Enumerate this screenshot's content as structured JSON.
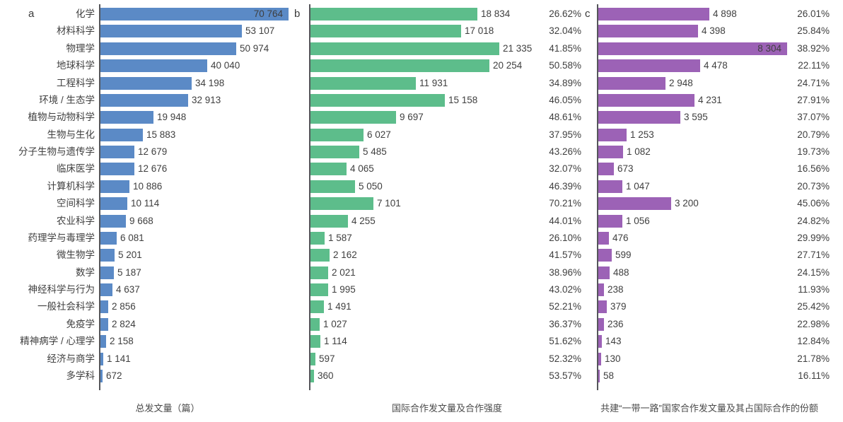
{
  "figure": {
    "text_color": "#3f3f3f",
    "axis_color": "#55565a",
    "background": "#ffffff",
    "panels": [
      {
        "letter": "a",
        "caption": "总发文量（篇）",
        "color": "#5b8ac6"
      },
      {
        "letter": "b",
        "caption": "国际合作发文量及合作强度",
        "color": "#5dbd8b"
      },
      {
        "letter": "c",
        "caption": "共建“一带一路”国家合作发文量及其占国际合作的份额",
        "color": "#9c62b6"
      }
    ]
  },
  "chart_data": {
    "type": "bar",
    "orientation": "horizontal",
    "value_format": "space-thousands",
    "categories": [
      "化学",
      "材料科学",
      "物理学",
      "地球科学",
      "工程科学",
      "环境 / 生态学",
      "植物与动物科学",
      "生物与生化",
      "分子生物与遗传学",
      "临床医学",
      "计算机科学",
      "空间科学",
      "农业科学",
      "药理学与毒理学",
      "微生物学",
      "数学",
      "神经科学与行为",
      "一般社会科学",
      "免疫学",
      "精神病学 / 心理学",
      "经济与商学",
      "多学科"
    ],
    "series": [
      {
        "panel": "a",
        "name": "总发文量（篇）",
        "color": "#5b8ac6",
        "values": [
          70764,
          53107,
          50974,
          40040,
          34198,
          32913,
          19948,
          15883,
          12679,
          12676,
          10886,
          10114,
          9668,
          6081,
          5201,
          5187,
          4637,
          2856,
          2824,
          2158,
          1141,
          672
        ],
        "inside_label_rows": [
          0
        ]
      },
      {
        "panel": "b",
        "name": "国际合作发文量及合作强度",
        "color": "#5dbd8b",
        "values": [
          18834,
          17018,
          21335,
          20254,
          11931,
          15158,
          9697,
          6027,
          5485,
          4065,
          5050,
          7101,
          4255,
          1587,
          2162,
          2021,
          1995,
          1491,
          1027,
          1114,
          597,
          360
        ],
        "percent_labels": [
          "26.62%",
          "32.04%",
          "41.85%",
          "50.58%",
          "34.89%",
          "46.05%",
          "48.61%",
          "37.95%",
          "43.26%",
          "32.07%",
          "46.39%",
          "70.21%",
          "44.01%",
          "26.10%",
          "41.57%",
          "38.96%",
          "43.02%",
          "52.21%",
          "36.37%",
          "51.62%",
          "52.32%",
          "53.57%"
        ],
        "inside_label_rows": []
      },
      {
        "panel": "c",
        "name": "共建“一带一路”国家合作发文量及其占国际合作的份额",
        "color": "#9c62b6",
        "values": [
          4898,
          4398,
          8304,
          4478,
          2948,
          4231,
          3595,
          1253,
          1082,
          673,
          1047,
          3200,
          1056,
          476,
          599,
          488,
          238,
          379,
          236,
          143,
          130,
          58
        ],
        "percent_labels": [
          "26.01%",
          "25.84%",
          "38.92%",
          "22.11%",
          "24.71%",
          "27.91%",
          "37.07%",
          "20.79%",
          "19.73%",
          "16.56%",
          "20.73%",
          "45.06%",
          "24.82%",
          "29.99%",
          "27.71%",
          "24.15%",
          "11.93%",
          "25.42%",
          "22.98%",
          "12.84%",
          "21.78%",
          "16.11%"
        ],
        "inside_label_rows": [
          2
        ]
      }
    ]
  }
}
